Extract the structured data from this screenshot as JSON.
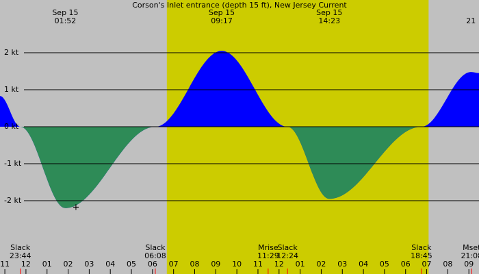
{
  "chart_data": {
    "type": "area",
    "title": "Corson's Inlet entrance (depth 15 ft), New Jersey Current",
    "xlim": [
      -1.23,
      21.48
    ],
    "ylim": [
      -3,
      3.426
    ],
    "xticks": [
      {
        "value": -1,
        "label": "11"
      },
      {
        "value": 0,
        "label": "12"
      },
      {
        "value": 1,
        "label": "01"
      },
      {
        "value": 2,
        "label": "02"
      },
      {
        "value": 3,
        "label": "03"
      },
      {
        "value": 4,
        "label": "04"
      },
      {
        "value": 5,
        "label": "05"
      },
      {
        "value": 6,
        "label": "06"
      },
      {
        "value": 7,
        "label": "07"
      },
      {
        "value": 8,
        "label": "08"
      },
      {
        "value": 9,
        "label": "09"
      },
      {
        "value": 10,
        "label": "10"
      },
      {
        "value": 11,
        "label": "11"
      },
      {
        "value": 12,
        "label": "12"
      },
      {
        "value": 13,
        "label": "01"
      },
      {
        "value": 14,
        "label": "02"
      },
      {
        "value": 15,
        "label": "03"
      },
      {
        "value": 16,
        "label": "04"
      },
      {
        "value": 17,
        "label": "05"
      },
      {
        "value": 18,
        "label": "06"
      },
      {
        "value": 19,
        "label": "07"
      },
      {
        "value": 20,
        "label": "08"
      },
      {
        "value": 21,
        "label": "09"
      }
    ],
    "yticks": [
      {
        "value": 2,
        "label": "2 kt"
      },
      {
        "value": 1,
        "label": "1 kt"
      },
      {
        "value": 0,
        "label": "0 kt"
      },
      {
        "value": -1,
        "label": "-1 kt"
      },
      {
        "value": -2,
        "label": "-2 kt"
      }
    ],
    "grid": true,
    "x": [
      -1.23,
      -0.267,
      1.867,
      6.133,
      9.283,
      12.4,
      14.383,
      18.75,
      21.1,
      21.48
    ],
    "values": [
      0.83,
      0,
      -2.2,
      0,
      2.05,
      0,
      -1.95,
      0,
      1.48,
      1.45
    ],
    "color": "#0000ff",
    "negative_color": "#2e8b57",
    "background": "#c0c0c0",
    "daylight": {
      "x": [
        6.68,
        19.09
      ],
      "color": "#cccc00"
    },
    "marker": {
      "x": 2.37,
      "y": -2.17
    },
    "top_labels": [
      {
        "x": 1.867,
        "date": "Sep 15",
        "time": "01:52"
      },
      {
        "x": 9.283,
        "date": "Sep 15",
        "time": "09:17"
      },
      {
        "x": 14.383,
        "date": "Sep 15",
        "time": "14:23"
      },
      {
        "x": 21.1,
        "time": "21"
      }
    ],
    "bottom_labels": [
      {
        "x": -0.267,
        "event": "Slack",
        "time": "23:44"
      },
      {
        "x": 6.133,
        "event": "Slack",
        "time": "06:08"
      },
      {
        "x": 11.483,
        "event": "Mrise",
        "time": "11:29"
      },
      {
        "x": 12.4,
        "event": "Slack",
        "time": "12:24"
      },
      {
        "x": 18.75,
        "event": "Slack",
        "time": "18:45"
      },
      {
        "x": 21.133,
        "event": "Mset",
        "time": "21:08"
      }
    ]
  }
}
